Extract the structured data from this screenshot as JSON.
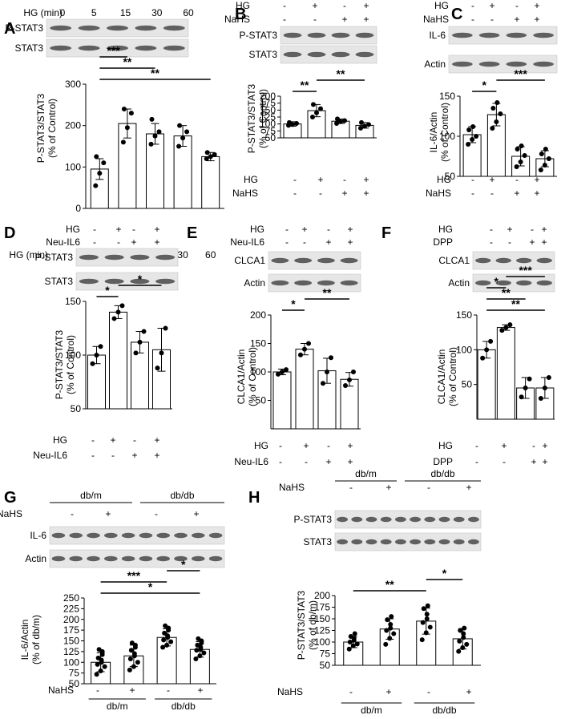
{
  "chart_data": [
    {
      "panel": "A",
      "type": "bar",
      "ylabel": "P-STAT3/STAT3\n(% of Control)",
      "ylim": [
        0,
        300
      ],
      "yticks": [
        0,
        100,
        200,
        300
      ],
      "blot_header": {
        "label": "HG (min)",
        "values": [
          "0",
          "5",
          "15",
          "30",
          "60"
        ]
      },
      "blots": [
        {
          "label": "P-STAT3"
        },
        {
          "label": "STAT3"
        }
      ],
      "xrows": [
        {
          "label": "HG (min)",
          "values": [
            "0",
            "5",
            "15",
            "30",
            "60"
          ]
        }
      ],
      "values": [
        95,
        205,
        180,
        175,
        125
      ],
      "errors": [
        25,
        35,
        25,
        25,
        10
      ],
      "points": [
        [
          55,
          85,
          110,
          125
        ],
        [
          160,
          195,
          230,
          240
        ],
        [
          155,
          175,
          185,
          215
        ],
        [
          150,
          170,
          185,
          200
        ],
        [
          120,
          125,
          130,
          135
        ]
      ],
      "sig": [
        {
          "from": 0,
          "to": 4,
          "label": "**"
        },
        {
          "from": 0,
          "to": 2,
          "label": "**"
        },
        {
          "from": 0,
          "to": 1,
          "label": "***"
        }
      ]
    },
    {
      "panel": "B",
      "type": "bar",
      "ylabel": "P-STAT3/STAT3\n(% of Control)",
      "ylim": [
        50,
        200
      ],
      "yticks": [
        50,
        75,
        100,
        125,
        150,
        175,
        200
      ],
      "blot_header": [
        {
          "label": "HG",
          "values": [
            "-",
            "+",
            "-",
            "+"
          ]
        },
        {
          "label": "NaHS",
          "values": [
            "-",
            "-",
            "+",
            "+"
          ]
        }
      ],
      "blots": [
        {
          "label": "P-STAT3"
        },
        {
          "label": "STAT3"
        }
      ],
      "xrows": [
        {
          "label": "HG",
          "values": [
            "-",
            "+",
            "-",
            "+"
          ]
        },
        {
          "label": "NaHS",
          "values": [
            "-",
            "-",
            "+",
            "+"
          ]
        }
      ],
      "values": [
        100,
        148,
        110,
        95
      ],
      "errors": [
        8,
        22,
        8,
        10
      ],
      "points": [
        [
          95,
          98,
          102,
          105
        ],
        [
          125,
          140,
          155,
          170
        ],
        [
          102,
          108,
          112,
          118
        ],
        [
          85,
          92,
          98,
          105
        ]
      ],
      "sig": [
        {
          "from": 0,
          "to": 1,
          "label": "**"
        },
        {
          "from": 1,
          "to": 3,
          "label": "**"
        }
      ]
    },
    {
      "panel": "C",
      "type": "bar",
      "ylabel": "IL-6/Actin\n(% of Control)",
      "ylim": [
        50,
        150
      ],
      "yticks": [
        50,
        100,
        150
      ],
      "blot_header": [
        {
          "label": "HG",
          "values": [
            "-",
            "+",
            "-",
            "+"
          ]
        },
        {
          "label": "NaHS",
          "values": [
            "-",
            "-",
            "+",
            "+"
          ]
        }
      ],
      "blots": [
        {
          "label": "IL-6"
        },
        {
          "label": "Actin"
        }
      ],
      "xrows": [
        {
          "label": "HG",
          "values": [
            "-",
            "+",
            "-",
            "+"
          ]
        },
        {
          "label": "NaHS",
          "values": [
            "-",
            "-",
            "+",
            "+"
          ]
        }
      ],
      "values": [
        102,
        127,
        75,
        72
      ],
      "errors": [
        10,
        14,
        12,
        10
      ],
      "points": [
        [
          90,
          96,
          100,
          108,
          112
        ],
        [
          110,
          118,
          128,
          135,
          142
        ],
        [
          62,
          68,
          76,
          84,
          88
        ],
        [
          58,
          64,
          72,
          78,
          84
        ]
      ],
      "sig": [
        {
          "from": 0,
          "to": 1,
          "label": "*"
        },
        {
          "from": 1,
          "to": 3,
          "label": "***"
        }
      ]
    },
    {
      "panel": "D",
      "type": "bar",
      "ylabel": "P-STAT3/STAT3\n(% of Control)",
      "ylim": [
        50,
        150
      ],
      "yticks": [
        50,
        100,
        150
      ],
      "blot_header": [
        {
          "label": "HG",
          "values": [
            "-",
            "+",
            "-",
            "+"
          ]
        },
        {
          "label": "Neu-IL6",
          "values": [
            "-",
            "-",
            "+",
            "+"
          ]
        }
      ],
      "blots": [
        {
          "label": "P-STAT3"
        },
        {
          "label": "STAT3"
        }
      ],
      "xrows": [
        {
          "label": "HG",
          "values": [
            "-",
            "+",
            "-",
            "+"
          ]
        },
        {
          "label": "Neu-IL6",
          "values": [
            "-",
            "-",
            "+",
            "+"
          ]
        }
      ],
      "values": [
        100,
        140,
        112,
        105
      ],
      "errors": [
        8,
        6,
        10,
        20
      ],
      "points": [
        [
          92,
          100,
          108
        ],
        [
          134,
          140,
          146
        ],
        [
          102,
          112,
          122
        ],
        [
          88,
          102,
          125
        ]
      ],
      "sig": [
        {
          "from": 0,
          "to": 1,
          "label": "*"
        },
        {
          "from": 1,
          "to": 3,
          "label": "*"
        }
      ]
    },
    {
      "panel": "E",
      "type": "bar",
      "ylabel": "CLCA1/Actin\n(% of Control)",
      "ylim": [
        0,
        200
      ],
      "yticks": [
        50,
        100,
        150,
        200
      ],
      "blot_header": [
        {
          "label": "HG",
          "values": [
            "-",
            "+",
            "-",
            "+"
          ]
        },
        {
          "label": "Neu-IL6",
          "values": [
            "-",
            "-",
            "+",
            "+"
          ]
        }
      ],
      "blots": [
        {
          "label": "CLCA1"
        },
        {
          "label": "Actin"
        }
      ],
      "xrows": [
        {
          "label": "HG",
          "values": [
            "-",
            "+",
            "-",
            "+"
          ]
        },
        {
          "label": "Neu-IL6",
          "values": [
            "-",
            "-",
            "+",
            "+"
          ]
        }
      ],
      "values": [
        100,
        140,
        102,
        87
      ],
      "errors": [
        5,
        10,
        22,
        12
      ],
      "points": [
        [
          96,
          100,
          104
        ],
        [
          130,
          140,
          150
        ],
        [
          80,
          100,
          125
        ],
        [
          76,
          86,
          100
        ]
      ],
      "sig": [
        {
          "from": 0,
          "to": 1,
          "label": "*"
        },
        {
          "from": 1,
          "to": 3,
          "label": "**"
        }
      ]
    },
    {
      "panel": "F",
      "type": "bar",
      "ylabel": "CLCA1/Actin\n(% of Control)",
      "ylim": [
        0,
        150
      ],
      "yticks": [
        50,
        100,
        150
      ],
      "blot_header": [
        {
          "label": "HG",
          "values": [
            "-",
            "+",
            "-",
            "+"
          ]
        },
        {
          "label": "DPP",
          "values": [
            "-",
            "-",
            "+",
            "+"
          ]
        }
      ],
      "blots": [
        {
          "label": "CLCA1"
        },
        {
          "label": "Actin"
        }
      ],
      "xrows": [
        {
          "label": "HG",
          "values": [
            "-",
            "+",
            "-",
            "+"
          ]
        },
        {
          "label": "DPP",
          "values": [
            "-",
            "-",
            "+",
            "+"
          ]
        }
      ],
      "values": [
        100,
        132,
        45,
        45
      ],
      "errors": [
        12,
        4,
        15,
        15
      ],
      "points": [
        [
          88,
          100,
          112
        ],
        [
          128,
          132,
          136
        ],
        [
          32,
          45,
          58
        ],
        [
          30,
          45,
          60
        ]
      ],
      "sig": [
        {
          "from": 0,
          "to": 3,
          "label": "**"
        },
        {
          "from": 0,
          "to": 2,
          "label": "**"
        },
        {
          "from": 0,
          "to": 1,
          "label": "*"
        },
        {
          "from": 1,
          "to": 3,
          "label": "***"
        }
      ]
    },
    {
      "panel": "G",
      "type": "bar",
      "ylabel": "IL-6/Actin\n(% of db/m)",
      "ylim": [
        50,
        250
      ],
      "yticks": [
        50,
        75,
        100,
        125,
        150,
        175,
        200,
        225,
        250
      ],
      "blot_groups": [
        "db/m",
        "db/db"
      ],
      "blot_header": [
        {
          "label": "NaHS",
          "values": [
            "-",
            "+",
            "-",
            "+"
          ]
        }
      ],
      "blots": [
        {
          "label": "IL-6"
        },
        {
          "label": "Actin"
        }
      ],
      "xrows": [
        {
          "label": "NaHS",
          "values": [
            "-",
            "+",
            "-",
            "+"
          ]
        }
      ],
      "groups": [
        "db/m",
        "db/db"
      ],
      "values": [
        100,
        115,
        158,
        130
      ],
      "errors": [
        22,
        25,
        20,
        18
      ],
      "points": [
        [
          72,
          80,
          90,
          95,
          100,
          105,
          110,
          118,
          125,
          130
        ],
        [
          82,
          90,
          100,
          108,
          115,
          120,
          128,
          135,
          140,
          145
        ],
        [
          135,
          140,
          148,
          152,
          158,
          162,
          168,
          175,
          180,
          185
        ],
        [
          108,
          115,
          122,
          128,
          130,
          135,
          140,
          145,
          150,
          155
        ]
      ],
      "sig": [
        {
          "from": 0,
          "to": 3,
          "label": "*"
        },
        {
          "from": 0,
          "to": 2,
          "label": "***"
        },
        {
          "from": 2,
          "to": 3,
          "label": "*"
        }
      ]
    },
    {
      "panel": "H",
      "type": "bar",
      "ylabel": "P-STAT3/STAT3\n(% of db/m)",
      "ylim": [
        50,
        200
      ],
      "yticks": [
        50,
        75,
        100,
        125,
        150,
        175,
        200
      ],
      "blot_groups": [
        "db/m",
        "db/db"
      ],
      "blot_header": [
        {
          "label": "NaHS",
          "values": [
            "-",
            "+",
            "-",
            "+"
          ]
        }
      ],
      "blots": [
        {
          "label": "P-STAT3"
        },
        {
          "label": "STAT3"
        }
      ],
      "xrows": [
        {
          "label": "NaHS",
          "values": [
            "-",
            "+",
            "-",
            "+"
          ]
        }
      ],
      "groups": [
        "db/m",
        "db/db"
      ],
      "values": [
        100,
        128,
        145,
        107
      ],
      "errors": [
        12,
        22,
        28,
        22
      ],
      "points": [
        [
          85,
          92,
          96,
          100,
          104,
          108,
          112,
          118
        ],
        [
          95,
          108,
          118,
          125,
          130,
          138,
          148,
          155
        ],
        [
          105,
          120,
          132,
          142,
          150,
          160,
          172,
          178
        ],
        [
          80,
          88,
          95,
          102,
          110,
          118,
          125,
          130
        ]
      ],
      "sig": [
        {
          "from": 0,
          "to": 2,
          "label": "**"
        },
        {
          "from": 2,
          "to": 3,
          "label": "*"
        }
      ]
    }
  ]
}
